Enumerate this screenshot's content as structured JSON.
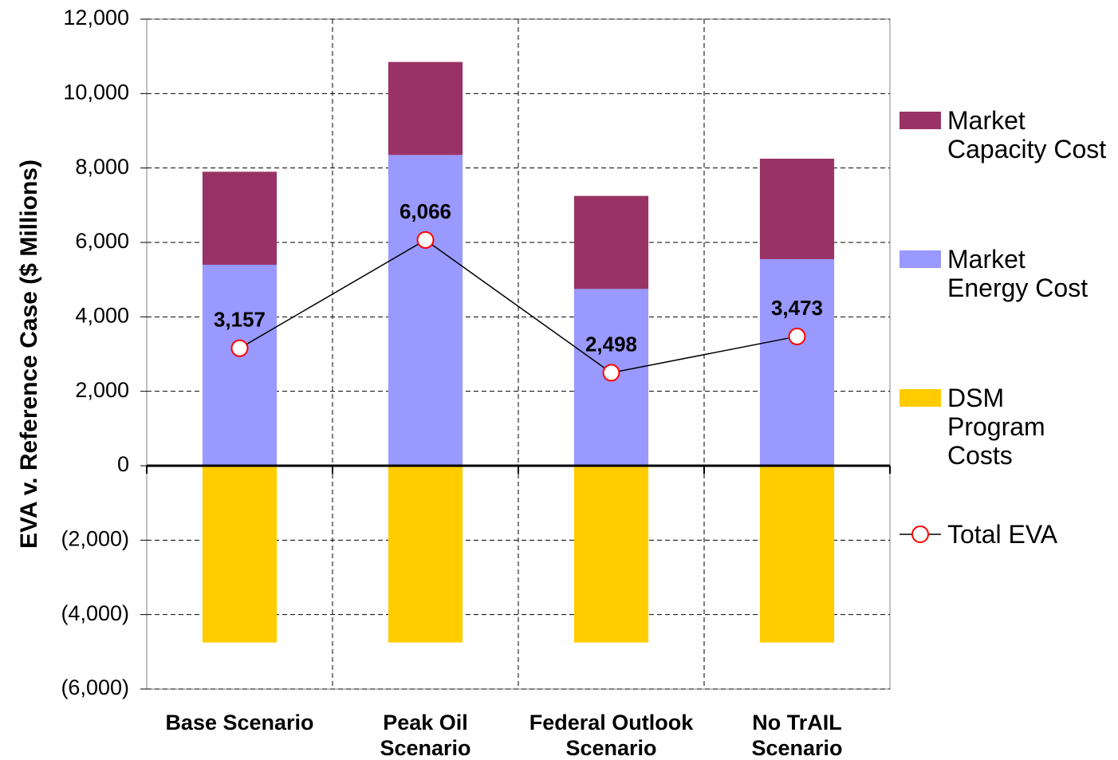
{
  "chart_data": {
    "type": "bar",
    "stacked": true,
    "y_label": "EVA v. Reference Case ($ Millions)",
    "categories": [
      "Base Scenario",
      "Peak Oil Scenario",
      "Federal Outlook Scenario",
      "No TrAIL Scenario"
    ],
    "series": [
      {
        "name": "Market Capacity Cost",
        "color": "#993366",
        "values": [
          2500,
          2500,
          2500,
          2700
        ]
      },
      {
        "name": "Market Energy Cost",
        "color": "#9999ff",
        "values": [
          5400,
          8350,
          4750,
          5550
        ]
      },
      {
        "name": "DSM Program Costs",
        "color": "#ffcc00",
        "values": [
          -4750,
          -4750,
          -4750,
          -4750
        ]
      },
      {
        "name": "Total EVA",
        "type": "line",
        "color": "#000000",
        "marker_color": "#ff0000",
        "values": [
          3157,
          6066,
          2498,
          3473
        ],
        "value_labels": [
          "3,157",
          "6,066",
          "2,498",
          "3,473"
        ]
      }
    ],
    "ylim": [
      -6000,
      12000
    ],
    "yticks": [
      {
        "value": -6000,
        "label": "(6,000)"
      },
      {
        "value": -4000,
        "label": "(4,000)"
      },
      {
        "value": -2000,
        "label": "(2,000)"
      },
      0,
      {
        "value": 2000,
        "label": "2,000"
      },
      {
        "value": 4000,
        "label": "4,000"
      },
      {
        "value": 6000,
        "label": "6,000"
      },
      {
        "value": 8000,
        "label": "8,000"
      },
      {
        "value": 10000,
        "label": "10,000"
      },
      {
        "value": 12000,
        "label": "12,000"
      }
    ],
    "grid": true,
    "legend": "right"
  }
}
